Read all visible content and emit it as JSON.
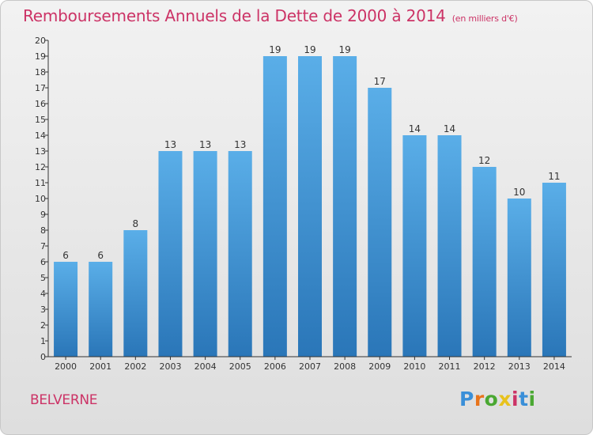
{
  "chart_data": {
    "type": "bar",
    "title": "Remboursements Annuels de la Dette de 2000 à 2014",
    "unit_label": "(en milliers d'€)",
    "categories": [
      "2000",
      "2001",
      "2002",
      "2003",
      "2004",
      "2005",
      "2006",
      "2007",
      "2008",
      "2009",
      "2010",
      "2011",
      "2012",
      "2013",
      "2014"
    ],
    "values": [
      6,
      6,
      8,
      13,
      13,
      13,
      19,
      19,
      19,
      17,
      14,
      14,
      12,
      10,
      11
    ],
    "ylim": [
      0,
      20
    ],
    "yticks": [
      0,
      1,
      2,
      3,
      4,
      5,
      6,
      7,
      8,
      9,
      10,
      11,
      12,
      13,
      14,
      15,
      16,
      17,
      18,
      19,
      20
    ],
    "xlabel": "",
    "ylabel": "",
    "grid": false,
    "data_labels": true,
    "bar_color": "#4a9ddc",
    "bar_color_dark": "#2a76b8"
  },
  "commune": "BELVERNE",
  "logo": {
    "text": "Proxiti",
    "letters": [
      "P",
      "r",
      "o",
      "x",
      "i",
      "t",
      "i"
    ],
    "colors": [
      "#3a8fd8",
      "#e8741c",
      "#4aa832",
      "#e8c21c",
      "#cc3366",
      "#3a8fd8",
      "#4aa832"
    ]
  },
  "colors": {
    "title": "#cc3366",
    "axis": "#333333"
  }
}
